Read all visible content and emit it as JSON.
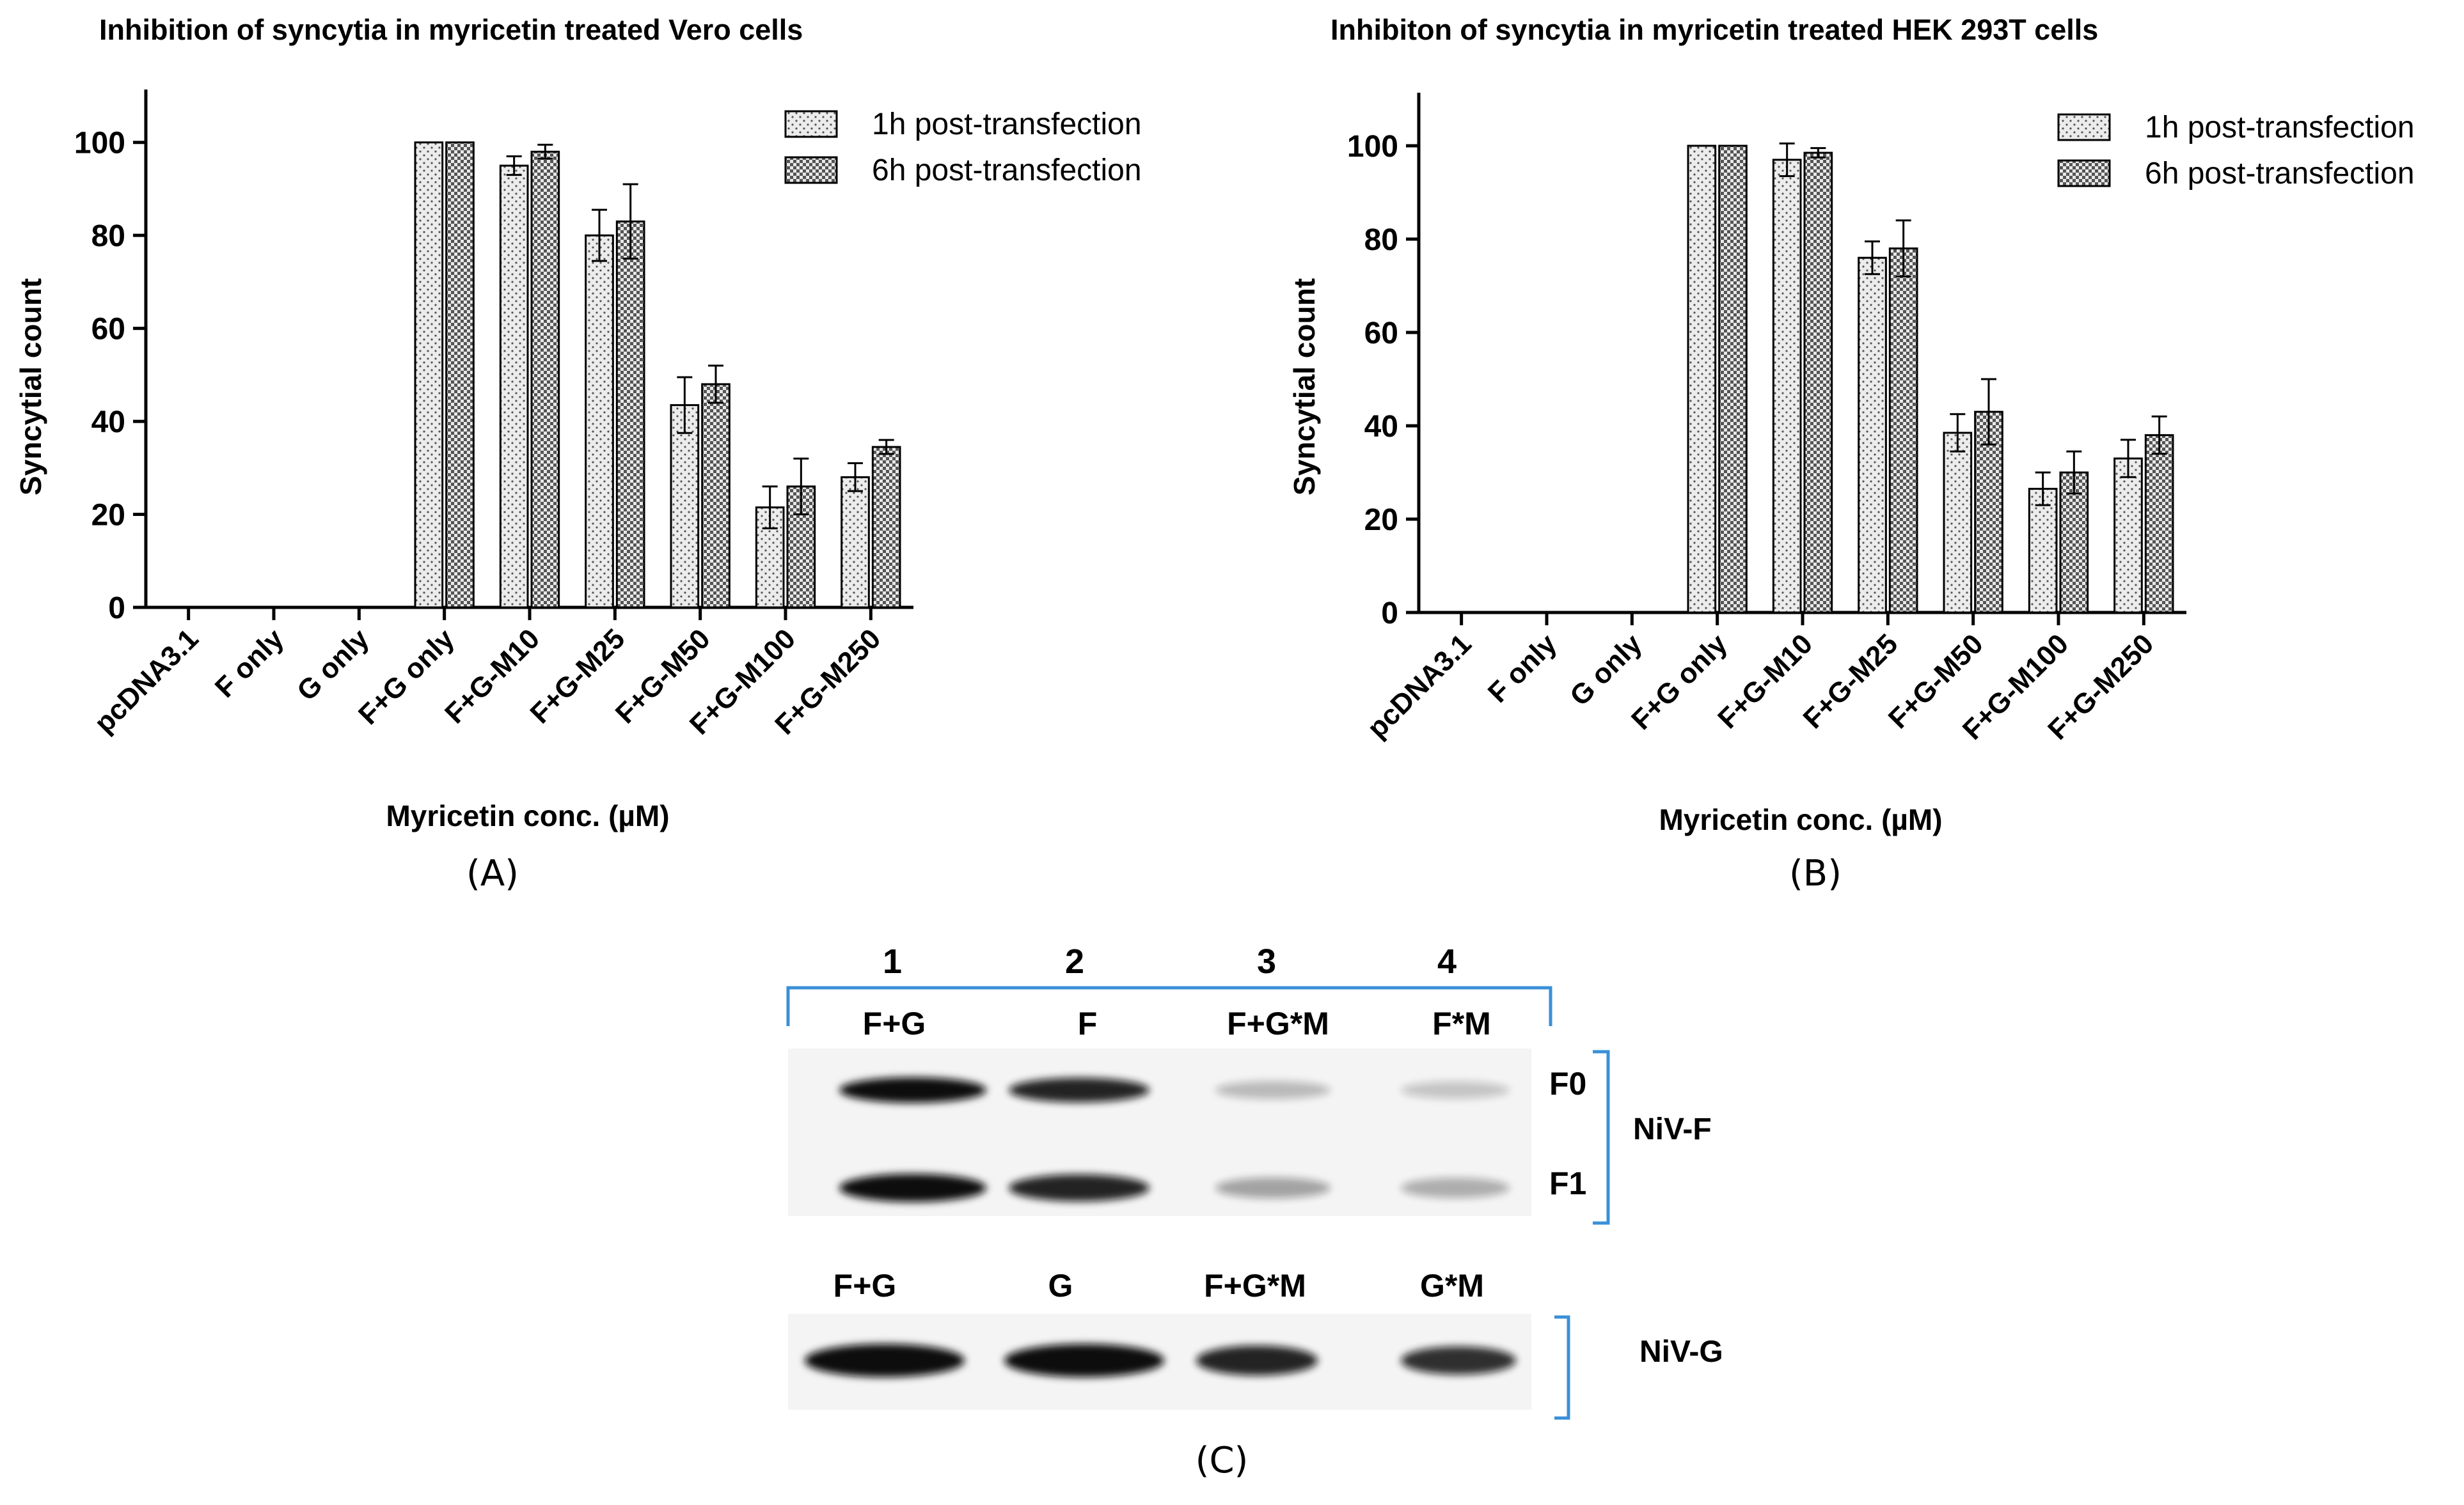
{
  "panel_labels": [
    "(A)",
    "(B)",
    "(C)"
  ],
  "colors": {
    "axis": "#000000",
    "bar_fill_1h": "#e6e6e6",
    "bar_fill_6h": "#d2d2d2",
    "blot_bracket": "#3a8fd8",
    "blot_band": "#101010",
    "blot_bg": "#f5f5f5"
  },
  "chart_data": [
    {
      "type": "bar",
      "title": "Inhibition of syncytia in myricetin treated Vero cells",
      "xlabel": "Myricetin conc. (µM)",
      "ylabel": "Syncytial count",
      "ylim": [
        0,
        110
      ],
      "yticks": [
        0,
        20,
        40,
        60,
        80,
        100
      ],
      "categories": [
        "pcDNA3.1",
        "F only",
        "G only",
        "F+G only",
        "F+G-M10",
        "F+G-M25",
        "F+G-M50",
        "F+G-M100",
        "F+G-M250"
      ],
      "legend_position": "top-right",
      "series": [
        {
          "name": "1h post-transfection",
          "pattern": "dots",
          "values": [
            0,
            0,
            0,
            100,
            95,
            80,
            43.5,
            21.5,
            28
          ],
          "errors": [
            0,
            0,
            0,
            0,
            2,
            5.5,
            6,
            4.5,
            3
          ]
        },
        {
          "name": "6h post-transfection",
          "pattern": "checker",
          "values": [
            0,
            0,
            0,
            100,
            98,
            83,
            48,
            26,
            34.5
          ],
          "errors": [
            0,
            0,
            0,
            0,
            1.5,
            8,
            4,
            6,
            1.5
          ]
        }
      ]
    },
    {
      "type": "bar",
      "title": "Inhibiton of syncytia in myricetin treated HEK 293T cells",
      "xlabel": "Myricetin conc. (µM)",
      "ylabel": "Syncytial count",
      "ylim": [
        0,
        110
      ],
      "yticks": [
        0,
        20,
        40,
        60,
        80,
        100
      ],
      "categories": [
        "pcDNA3.1",
        "F only",
        "G only",
        "F+G only",
        "F+G-M10",
        "F+G-M25",
        "F+G-M50",
        "F+G-M100",
        "F+G-M250"
      ],
      "legend_position": "top-right",
      "series": [
        {
          "name": "1h post-transfection",
          "pattern": "dots",
          "values": [
            0,
            0,
            0,
            100,
            97,
            76,
            38.5,
            26.5,
            33
          ],
          "errors": [
            0,
            0,
            0,
            0,
            3.5,
            3.5,
            4,
            3.5,
            4
          ]
        },
        {
          "name": "6h post-transfection",
          "pattern": "checker",
          "values": [
            0,
            0,
            0,
            100,
            98.5,
            78,
            43,
            30,
            38
          ],
          "errors": [
            0,
            0,
            0,
            0,
            1,
            6,
            7,
            4.5,
            4
          ]
        }
      ]
    }
  ],
  "blot": {
    "lane_numbers": [
      "1",
      "2",
      "3",
      "4"
    ],
    "f_lane_labels": [
      "F+G",
      "F",
      "F+G*M",
      "F*M"
    ],
    "g_lane_labels": [
      "F+G",
      "G",
      "F+G*M",
      "G*M"
    ],
    "f_band_labels": [
      "F0",
      "F1"
    ],
    "f_group_label": "NiV-F",
    "g_group_label": "NiV-G",
    "f0_band_intensity": [
      1.0,
      0.9,
      0.25,
      0.2
    ],
    "f1_band_intensity": [
      1.0,
      0.9,
      0.35,
      0.3
    ],
    "g_band_intensity": [
      1.0,
      1.0,
      0.9,
      0.85
    ]
  }
}
